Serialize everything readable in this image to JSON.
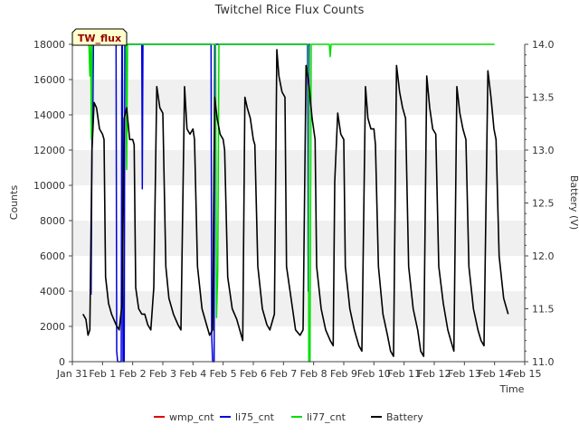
{
  "chart_data": {
    "type": "line",
    "title": "Twitchel Rice Flux Counts",
    "xlabel": "Time",
    "ylabel_left": "Counts",
    "ylabel_right": "Battery (V)",
    "site_label": "TW_flux",
    "x_ticks": [
      "Jan 31",
      "Feb 1",
      "Feb 2",
      "Feb 3",
      "Feb 4",
      "Feb 5",
      "Feb 6",
      "Feb 7",
      "Feb 8",
      "Feb 9",
      "Feb 10",
      "Feb 11",
      "Feb 12",
      "Feb 13",
      "Feb 14",
      "Feb 15"
    ],
    "xlim_days": [
      0,
      15
    ],
    "ylim_left": [
      0,
      18000
    ],
    "yticks_left": [
      0,
      2000,
      4000,
      6000,
      8000,
      10000,
      12000,
      14000,
      16000,
      18000
    ],
    "ylim_right": [
      11.0,
      14.0
    ],
    "yticks_right": [
      11.0,
      11.5,
      12.0,
      12.5,
      13.0,
      13.5,
      14.0
    ],
    "grid": "horizontal bands",
    "legend_position": "bottom",
    "series": [
      {
        "name": "wmp_cnt",
        "color": "#dd0000",
        "axis": "left",
        "points": []
      },
      {
        "name": "li75_cnt",
        "color": "#0000dd",
        "axis": "left",
        "points": [
          [
            0.62,
            3800
          ],
          [
            0.65,
            12500
          ],
          [
            0.68,
            14500
          ],
          [
            0.7,
            18000
          ],
          [
            0.72,
            18000
          ],
          [
            1.45,
            18000
          ],
          [
            1.47,
            600
          ],
          [
            1.5,
            0
          ],
          [
            1.62,
            0
          ],
          [
            1.64,
            18000
          ],
          [
            1.66,
            18000
          ],
          [
            1.68,
            0
          ],
          [
            1.72,
            0
          ],
          [
            1.74,
            18000
          ],
          [
            2.3,
            18000
          ],
          [
            2.32,
            9800
          ],
          [
            2.34,
            18000
          ],
          [
            2.36,
            18000
          ],
          [
            4.6,
            18000
          ],
          [
            4.62,
            1500
          ],
          [
            4.65,
            0
          ],
          [
            4.7,
            0
          ],
          [
            4.72,
            18000
          ],
          [
            7.8,
            18000
          ],
          [
            7.82,
            4000
          ],
          [
            7.85,
            18000
          ],
          [
            7.88,
            18000
          ]
        ]
      },
      {
        "name": "li77_cnt",
        "color": "#00dd00",
        "axis": "left",
        "points": [
          [
            0.55,
            18000
          ],
          [
            0.58,
            16200
          ],
          [
            0.61,
            18000
          ],
          [
            0.63,
            12600
          ],
          [
            0.66,
            18000
          ],
          [
            1.78,
            18000
          ],
          [
            1.8,
            10900
          ],
          [
            1.83,
            18000
          ],
          [
            4.75,
            18000
          ],
          [
            4.78,
            2500
          ],
          [
            4.82,
            5000
          ],
          [
            4.86,
            18000
          ],
          [
            7.82,
            18000
          ],
          [
            7.84,
            0
          ],
          [
            7.88,
            0
          ],
          [
            7.9,
            8500
          ],
          [
            7.92,
            18000
          ],
          [
            8.52,
            18000
          ],
          [
            8.55,
            17300
          ],
          [
            8.58,
            18000
          ],
          [
            14.0,
            18000
          ]
        ]
      },
      {
        "name": "Battery",
        "color": "#000000",
        "axis": "right",
        "points": [
          [
            0.35,
            11.45
          ],
          [
            0.45,
            11.4
          ],
          [
            0.52,
            11.25
          ],
          [
            0.58,
            11.3
          ],
          [
            0.65,
            13.0
          ],
          [
            0.72,
            13.45
          ],
          [
            0.8,
            13.4
          ],
          [
            0.9,
            13.2
          ],
          [
            1.0,
            13.15
          ],
          [
            1.05,
            13.1
          ],
          [
            1.1,
            11.8
          ],
          [
            1.2,
            11.55
          ],
          [
            1.3,
            11.45
          ],
          [
            1.45,
            11.35
          ],
          [
            1.55,
            11.3
          ],
          [
            1.65,
            11.55
          ],
          [
            1.72,
            13.3
          ],
          [
            1.8,
            13.4
          ],
          [
            1.9,
            13.1
          ],
          [
            2.0,
            13.1
          ],
          [
            2.05,
            13.05
          ],
          [
            2.1,
            11.7
          ],
          [
            2.2,
            11.5
          ],
          [
            2.3,
            11.45
          ],
          [
            2.4,
            11.45
          ],
          [
            2.5,
            11.35
          ],
          [
            2.6,
            11.3
          ],
          [
            2.7,
            11.7
          ],
          [
            2.8,
            13.6
          ],
          [
            2.9,
            13.4
          ],
          [
            3.0,
            13.35
          ],
          [
            3.1,
            11.9
          ],
          [
            3.2,
            11.6
          ],
          [
            3.35,
            11.45
          ],
          [
            3.5,
            11.35
          ],
          [
            3.6,
            11.3
          ],
          [
            3.72,
            13.6
          ],
          [
            3.8,
            13.2
          ],
          [
            3.9,
            13.15
          ],
          [
            4.0,
            13.2
          ],
          [
            4.05,
            13.1
          ],
          [
            4.15,
            11.9
          ],
          [
            4.3,
            11.5
          ],
          [
            4.45,
            11.35
          ],
          [
            4.55,
            11.25
          ],
          [
            4.65,
            11.3
          ],
          [
            4.72,
            13.5
          ],
          [
            4.8,
            13.3
          ],
          [
            4.9,
            13.15
          ],
          [
            5.0,
            13.1
          ],
          [
            5.05,
            13.0
          ],
          [
            5.15,
            11.8
          ],
          [
            5.3,
            11.5
          ],
          [
            5.45,
            11.4
          ],
          [
            5.55,
            11.3
          ],
          [
            5.65,
            11.2
          ],
          [
            5.72,
            13.5
          ],
          [
            5.8,
            13.4
          ],
          [
            5.9,
            13.3
          ],
          [
            6.0,
            13.1
          ],
          [
            6.05,
            13.05
          ],
          [
            6.15,
            11.9
          ],
          [
            6.3,
            11.5
          ],
          [
            6.45,
            11.35
          ],
          [
            6.55,
            11.3
          ],
          [
            6.7,
            11.45
          ],
          [
            6.78,
            13.95
          ],
          [
            6.85,
            13.7
          ],
          [
            6.95,
            13.55
          ],
          [
            7.05,
            13.5
          ],
          [
            7.1,
            11.9
          ],
          [
            7.25,
            11.6
          ],
          [
            7.4,
            11.3
          ],
          [
            7.55,
            11.25
          ],
          [
            7.65,
            11.3
          ],
          [
            7.75,
            13.8
          ],
          [
            7.85,
            13.6
          ],
          [
            7.95,
            13.3
          ],
          [
            8.05,
            13.1
          ],
          [
            8.1,
            11.9
          ],
          [
            8.25,
            11.5
          ],
          [
            8.4,
            11.3
          ],
          [
            8.55,
            11.2
          ],
          [
            8.65,
            11.15
          ],
          [
            8.7,
            12.7
          ],
          [
            8.8,
            13.35
          ],
          [
            8.9,
            13.15
          ],
          [
            9.0,
            13.1
          ],
          [
            9.05,
            11.9
          ],
          [
            9.2,
            11.5
          ],
          [
            9.35,
            11.3
          ],
          [
            9.5,
            11.15
          ],
          [
            9.6,
            11.1
          ],
          [
            9.72,
            13.6
          ],
          [
            9.8,
            13.3
          ],
          [
            9.9,
            13.2
          ],
          [
            10.0,
            13.2
          ],
          [
            10.05,
            13.05
          ],
          [
            10.15,
            11.9
          ],
          [
            10.3,
            11.45
          ],
          [
            10.45,
            11.25
          ],
          [
            10.55,
            11.1
          ],
          [
            10.65,
            11.05
          ],
          [
            10.75,
            13.8
          ],
          [
            10.85,
            13.55
          ],
          [
            10.95,
            13.4
          ],
          [
            11.05,
            13.3
          ],
          [
            11.15,
            11.9
          ],
          [
            11.3,
            11.5
          ],
          [
            11.45,
            11.3
          ],
          [
            11.55,
            11.1
          ],
          [
            11.65,
            11.05
          ],
          [
            11.75,
            13.7
          ],
          [
            11.85,
            13.4
          ],
          [
            11.95,
            13.2
          ],
          [
            12.05,
            13.15
          ],
          [
            12.15,
            11.9
          ],
          [
            12.3,
            11.55
          ],
          [
            12.45,
            11.3
          ],
          [
            12.55,
            11.2
          ],
          [
            12.65,
            11.1
          ],
          [
            12.75,
            13.6
          ],
          [
            12.85,
            13.35
          ],
          [
            12.95,
            13.2
          ],
          [
            13.05,
            13.1
          ],
          [
            13.15,
            11.9
          ],
          [
            13.3,
            11.5
          ],
          [
            13.45,
            11.3
          ],
          [
            13.55,
            11.2
          ],
          [
            13.65,
            11.15
          ],
          [
            13.78,
            13.75
          ],
          [
            13.88,
            13.5
          ],
          [
            13.98,
            13.2
          ],
          [
            14.05,
            13.1
          ],
          [
            14.15,
            12.0
          ],
          [
            14.3,
            11.6
          ],
          [
            14.45,
            11.45
          ]
        ]
      }
    ]
  }
}
